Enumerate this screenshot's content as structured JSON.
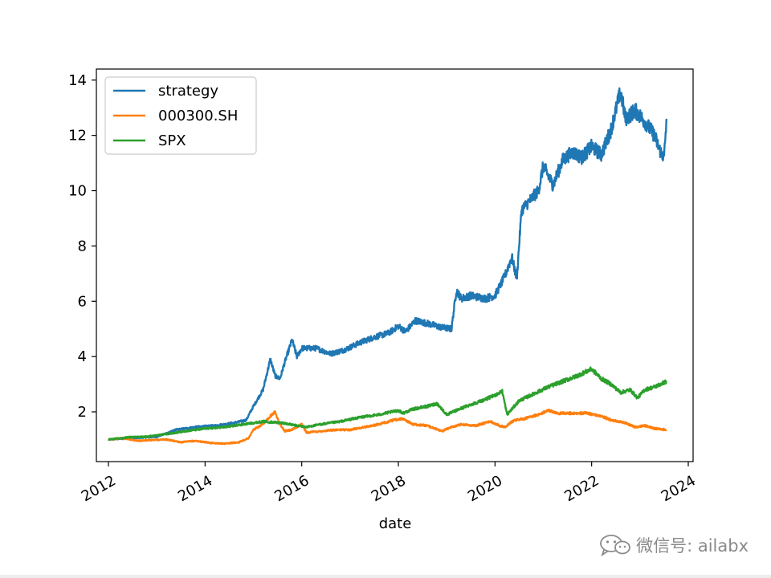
{
  "chart_data": {
    "type": "line",
    "xlabel": "date",
    "ylabel": "",
    "xlim": [
      2011.75,
      2024.1
    ],
    "ylim": [
      0.2,
      14.4
    ],
    "x_ticks": [
      2012,
      2014,
      2016,
      2018,
      2020,
      2022,
      2024
    ],
    "x_tick_labels": [
      "2012",
      "2014",
      "2016",
      "2018",
      "2020",
      "2022",
      "2024"
    ],
    "y_ticks": [
      2,
      4,
      6,
      8,
      10,
      12,
      14
    ],
    "y_tick_labels": [
      "2",
      "4",
      "6",
      "8",
      "10",
      "12",
      "14"
    ],
    "grid": false,
    "legend": "top-left",
    "series": [
      {
        "name": "strategy",
        "color": "#1f77b4",
        "x": [
          2012.0,
          2012.5,
          2013.0,
          2013.4,
          2013.8,
          2014.2,
          2014.6,
          2014.85,
          2015.0,
          2015.2,
          2015.35,
          2015.45,
          2015.55,
          2015.65,
          2015.8,
          2015.9,
          2016.0,
          2016.3,
          2016.6,
          2016.9,
          2017.2,
          2017.5,
          2017.8,
          2018.0,
          2018.15,
          2018.35,
          2018.6,
          2018.9,
          2019.1,
          2019.2,
          2019.3,
          2019.5,
          2019.8,
          2020.0,
          2020.2,
          2020.35,
          2020.45,
          2020.55,
          2020.7,
          2020.9,
          2021.0,
          2021.2,
          2021.4,
          2021.6,
          2021.8,
          2022.0,
          2022.2,
          2022.4,
          2022.6,
          2022.7,
          2022.9,
          2023.1,
          2023.3,
          2023.4,
          2023.5,
          2023.55
        ],
        "values": [
          1.0,
          1.05,
          1.1,
          1.35,
          1.45,
          1.5,
          1.6,
          1.7,
          2.2,
          2.8,
          3.9,
          3.3,
          3.2,
          3.8,
          4.6,
          4.0,
          4.3,
          4.3,
          4.1,
          4.25,
          4.5,
          4.7,
          4.85,
          5.1,
          4.9,
          5.3,
          5.2,
          5.05,
          5.0,
          6.4,
          6.1,
          6.2,
          6.1,
          6.2,
          6.9,
          7.6,
          6.8,
          9.3,
          9.6,
          10.0,
          10.9,
          10.2,
          11.1,
          11.4,
          11.2,
          11.6,
          11.3,
          12.2,
          13.6,
          12.6,
          12.9,
          12.5,
          12.0,
          11.5,
          11.2,
          12.6
        ]
      },
      {
        "name": "000300.SH",
        "color": "#ff7f0e",
        "x": [
          2012.0,
          2012.3,
          2012.6,
          2012.9,
          2013.2,
          2013.5,
          2013.8,
          2014.1,
          2014.4,
          2014.7,
          2014.9,
          2015.0,
          2015.2,
          2015.35,
          2015.45,
          2015.55,
          2015.65,
          2015.8,
          2016.0,
          2016.1,
          2016.4,
          2016.7,
          2017.0,
          2017.3,
          2017.6,
          2017.9,
          2018.1,
          2018.3,
          2018.6,
          2018.9,
          2019.1,
          2019.3,
          2019.6,
          2019.9,
          2020.1,
          2020.2,
          2020.4,
          2020.6,
          2020.9,
          2021.1,
          2021.3,
          2021.6,
          2021.9,
          2022.2,
          2022.4,
          2022.7,
          2022.9,
          2023.1,
          2023.3,
          2023.55
        ],
        "values": [
          1.0,
          1.05,
          0.95,
          0.98,
          1.0,
          0.9,
          0.95,
          0.88,
          0.85,
          0.9,
          1.05,
          1.35,
          1.55,
          1.85,
          2.0,
          1.55,
          1.3,
          1.35,
          1.55,
          1.25,
          1.3,
          1.35,
          1.35,
          1.45,
          1.55,
          1.7,
          1.75,
          1.55,
          1.5,
          1.3,
          1.45,
          1.55,
          1.5,
          1.65,
          1.5,
          1.45,
          1.7,
          1.75,
          1.9,
          2.05,
          1.95,
          1.95,
          1.95,
          1.85,
          1.7,
          1.6,
          1.45,
          1.5,
          1.4,
          1.35
        ]
      },
      {
        "name": "SPX",
        "color": "#2ca02c",
        "x": [
          2012.0,
          2012.4,
          2012.8,
          2013.2,
          2013.6,
          2014.0,
          2014.4,
          2014.8,
          2015.2,
          2015.6,
          2015.9,
          2016.1,
          2016.4,
          2016.8,
          2017.2,
          2017.6,
          2018.0,
          2018.1,
          2018.3,
          2018.6,
          2018.8,
          2019.0,
          2019.4,
          2019.8,
          2020.0,
          2020.15,
          2020.25,
          2020.5,
          2020.8,
          2021.1,
          2021.4,
          2021.7,
          2022.0,
          2022.2,
          2022.4,
          2022.6,
          2022.8,
          2022.95,
          2023.1,
          2023.3,
          2023.55
        ],
        "values": [
          1.0,
          1.08,
          1.1,
          1.2,
          1.3,
          1.4,
          1.45,
          1.55,
          1.65,
          1.6,
          1.5,
          1.45,
          1.55,
          1.65,
          1.8,
          1.9,
          2.05,
          1.95,
          2.1,
          2.2,
          2.3,
          1.9,
          2.2,
          2.45,
          2.6,
          2.75,
          1.9,
          2.4,
          2.65,
          2.9,
          3.1,
          3.3,
          3.55,
          3.2,
          3.0,
          2.7,
          2.8,
          2.5,
          2.8,
          2.9,
          3.1
        ]
      }
    ]
  },
  "watermark": {
    "text": "微信号: ailabx",
    "icon": "wechat-icon"
  }
}
